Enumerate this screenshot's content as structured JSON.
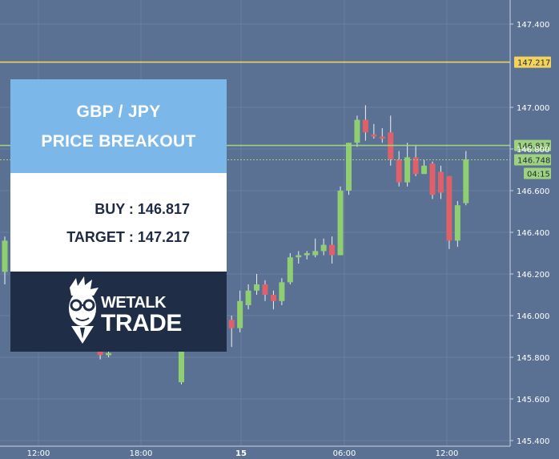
{
  "colors": {
    "background": "#5a7194",
    "grid": "#6a80a2",
    "bull": "#8fcf72",
    "bear": "#e0606a",
    "resistance_line": "#f3d35c",
    "buy_line": "#9fd27e",
    "card_header": "#7cb7ea",
    "card_logo_bg": "#1f2d46"
  },
  "card": {
    "title_line1": "GBP / JPY",
    "title_line2": "PRICE BREAKOUT",
    "buy_text": "BUY : 146.817",
    "target_text": "TARGET : 147.217",
    "logo_top": "WETALK",
    "logo_bottom": "TRADE"
  },
  "chart_data": {
    "type": "candlestick",
    "symbol": "GBP/JPY",
    "ylim": [
      145.4,
      147.5
    ],
    "y_ticks": [
      "147.400",
      "147.000",
      "146.800",
      "146.600",
      "146.400",
      "146.200",
      "146.000",
      "145.800",
      "145.600",
      "145.400"
    ],
    "x_ticks": [
      "12:00",
      "18:00",
      "15",
      "06:00",
      "12:00"
    ],
    "horizontal_lines": [
      {
        "label": "147.217",
        "value": 147.217,
        "style": "solid",
        "color": "#f3d35c",
        "tag_bg": "#f3d35c"
      },
      {
        "label": "146.817",
        "value": 146.817,
        "style": "solid",
        "color": "#9fd27e",
        "tag_bg": "#9fd27e"
      },
      {
        "label": "146.748",
        "value": 146.748,
        "style": "dotted",
        "color": "#9fd27e",
        "tag_bg": "#9fd27e"
      }
    ],
    "countdown": "04:15",
    "candles": [
      {
        "x_slot": 0,
        "open": 146.21,
        "close": 146.36,
        "high": 146.38,
        "low": 146.15
      },
      {
        "x_slot": 11.4,
        "open": 145.83,
        "close": 145.81,
        "high": 145.85,
        "low": 145.79
      },
      {
        "x_slot": 12.4,
        "open": 145.81,
        "close": 145.82,
        "high": 145.84,
        "low": 145.8
      },
      {
        "x_slot": 21.1,
        "open": 145.68,
        "close": 145.83,
        "high": 145.86,
        "low": 145.67
      },
      {
        "x_slot": 26.2,
        "open": 145.99,
        "close": 145.98,
        "high": 146.02,
        "low": 145.93
      },
      {
        "x_slot": 27.1,
        "open": 145.98,
        "close": 145.94,
        "high": 146.0,
        "low": 145.85
      },
      {
        "x_slot": 28.1,
        "open": 145.94,
        "close": 146.07,
        "high": 146.12,
        "low": 145.92
      },
      {
        "x_slot": 29.1,
        "open": 146.05,
        "close": 146.12,
        "high": 146.15,
        "low": 146.03
      },
      {
        "x_slot": 30.1,
        "open": 146.12,
        "close": 146.15,
        "high": 146.2,
        "low": 146.1
      },
      {
        "x_slot": 31.1,
        "open": 146.15,
        "close": 146.1,
        "high": 146.17,
        "low": 146.07
      },
      {
        "x_slot": 32.1,
        "open": 146.1,
        "close": 146.07,
        "high": 146.12,
        "low": 146.03
      },
      {
        "x_slot": 33.1,
        "open": 146.07,
        "close": 146.16,
        "high": 146.18,
        "low": 146.05
      },
      {
        "x_slot": 34.1,
        "open": 146.16,
        "close": 146.28,
        "high": 146.3,
        "low": 146.15
      },
      {
        "x_slot": 35.1,
        "open": 146.28,
        "close": 146.29,
        "high": 146.31,
        "low": 146.25
      },
      {
        "x_slot": 36.1,
        "open": 146.29,
        "close": 146.3,
        "high": 146.31,
        "low": 146.27
      },
      {
        "x_slot": 37.1,
        "open": 146.29,
        "close": 146.31,
        "high": 146.37,
        "low": 146.28
      },
      {
        "x_slot": 38.1,
        "open": 146.31,
        "close": 146.34,
        "high": 146.37,
        "low": 146.29
      },
      {
        "x_slot": 39.1,
        "open": 146.34,
        "close": 146.29,
        "high": 146.38,
        "low": 146.25
      },
      {
        "x_slot": 40.1,
        "open": 146.29,
        "close": 146.6,
        "high": 146.62,
        "low": 146.29
      },
      {
        "x_slot": 41.1,
        "open": 146.6,
        "close": 146.83,
        "high": 146.83,
        "low": 146.58
      },
      {
        "x_slot": 42.1,
        "open": 146.83,
        "close": 146.94,
        "high": 146.96,
        "low": 146.81
      },
      {
        "x_slot": 43.1,
        "open": 146.94,
        "close": 146.88,
        "high": 147.01,
        "low": 146.84
      },
      {
        "x_slot": 44.1,
        "open": 146.87,
        "close": 146.86,
        "high": 146.92,
        "low": 146.85
      },
      {
        "x_slot": 45.1,
        "open": 146.86,
        "close": 146.85,
        "high": 146.9,
        "low": 146.83
      },
      {
        "x_slot": 46.1,
        "open": 146.88,
        "close": 146.75,
        "high": 146.96,
        "low": 146.72
      },
      {
        "x_slot": 47.1,
        "open": 146.75,
        "close": 146.64,
        "high": 146.79,
        "low": 146.62
      },
      {
        "x_slot": 48.1,
        "open": 146.64,
        "close": 146.76,
        "high": 146.83,
        "low": 146.62
      },
      {
        "x_slot": 49.1,
        "open": 146.76,
        "close": 146.68,
        "high": 146.82,
        "low": 146.67
      },
      {
        "x_slot": 50.1,
        "open": 146.68,
        "close": 146.72,
        "high": 146.75,
        "low": 146.68
      },
      {
        "x_slot": 51.1,
        "open": 146.73,
        "close": 146.58,
        "high": 146.74,
        "low": 146.56
      },
      {
        "x_slot": 52.1,
        "open": 146.69,
        "close": 146.59,
        "high": 146.72,
        "low": 146.56
      },
      {
        "x_slot": 53.1,
        "open": 146.67,
        "close": 146.36,
        "high": 146.67,
        "low": 146.32
      },
      {
        "x_slot": 54.1,
        "open": 146.36,
        "close": 146.53,
        "high": 146.55,
        "low": 146.33
      },
      {
        "x_slot": 55.1,
        "open": 146.54,
        "close": 146.75,
        "high": 146.79,
        "low": 146.53
      }
    ]
  }
}
